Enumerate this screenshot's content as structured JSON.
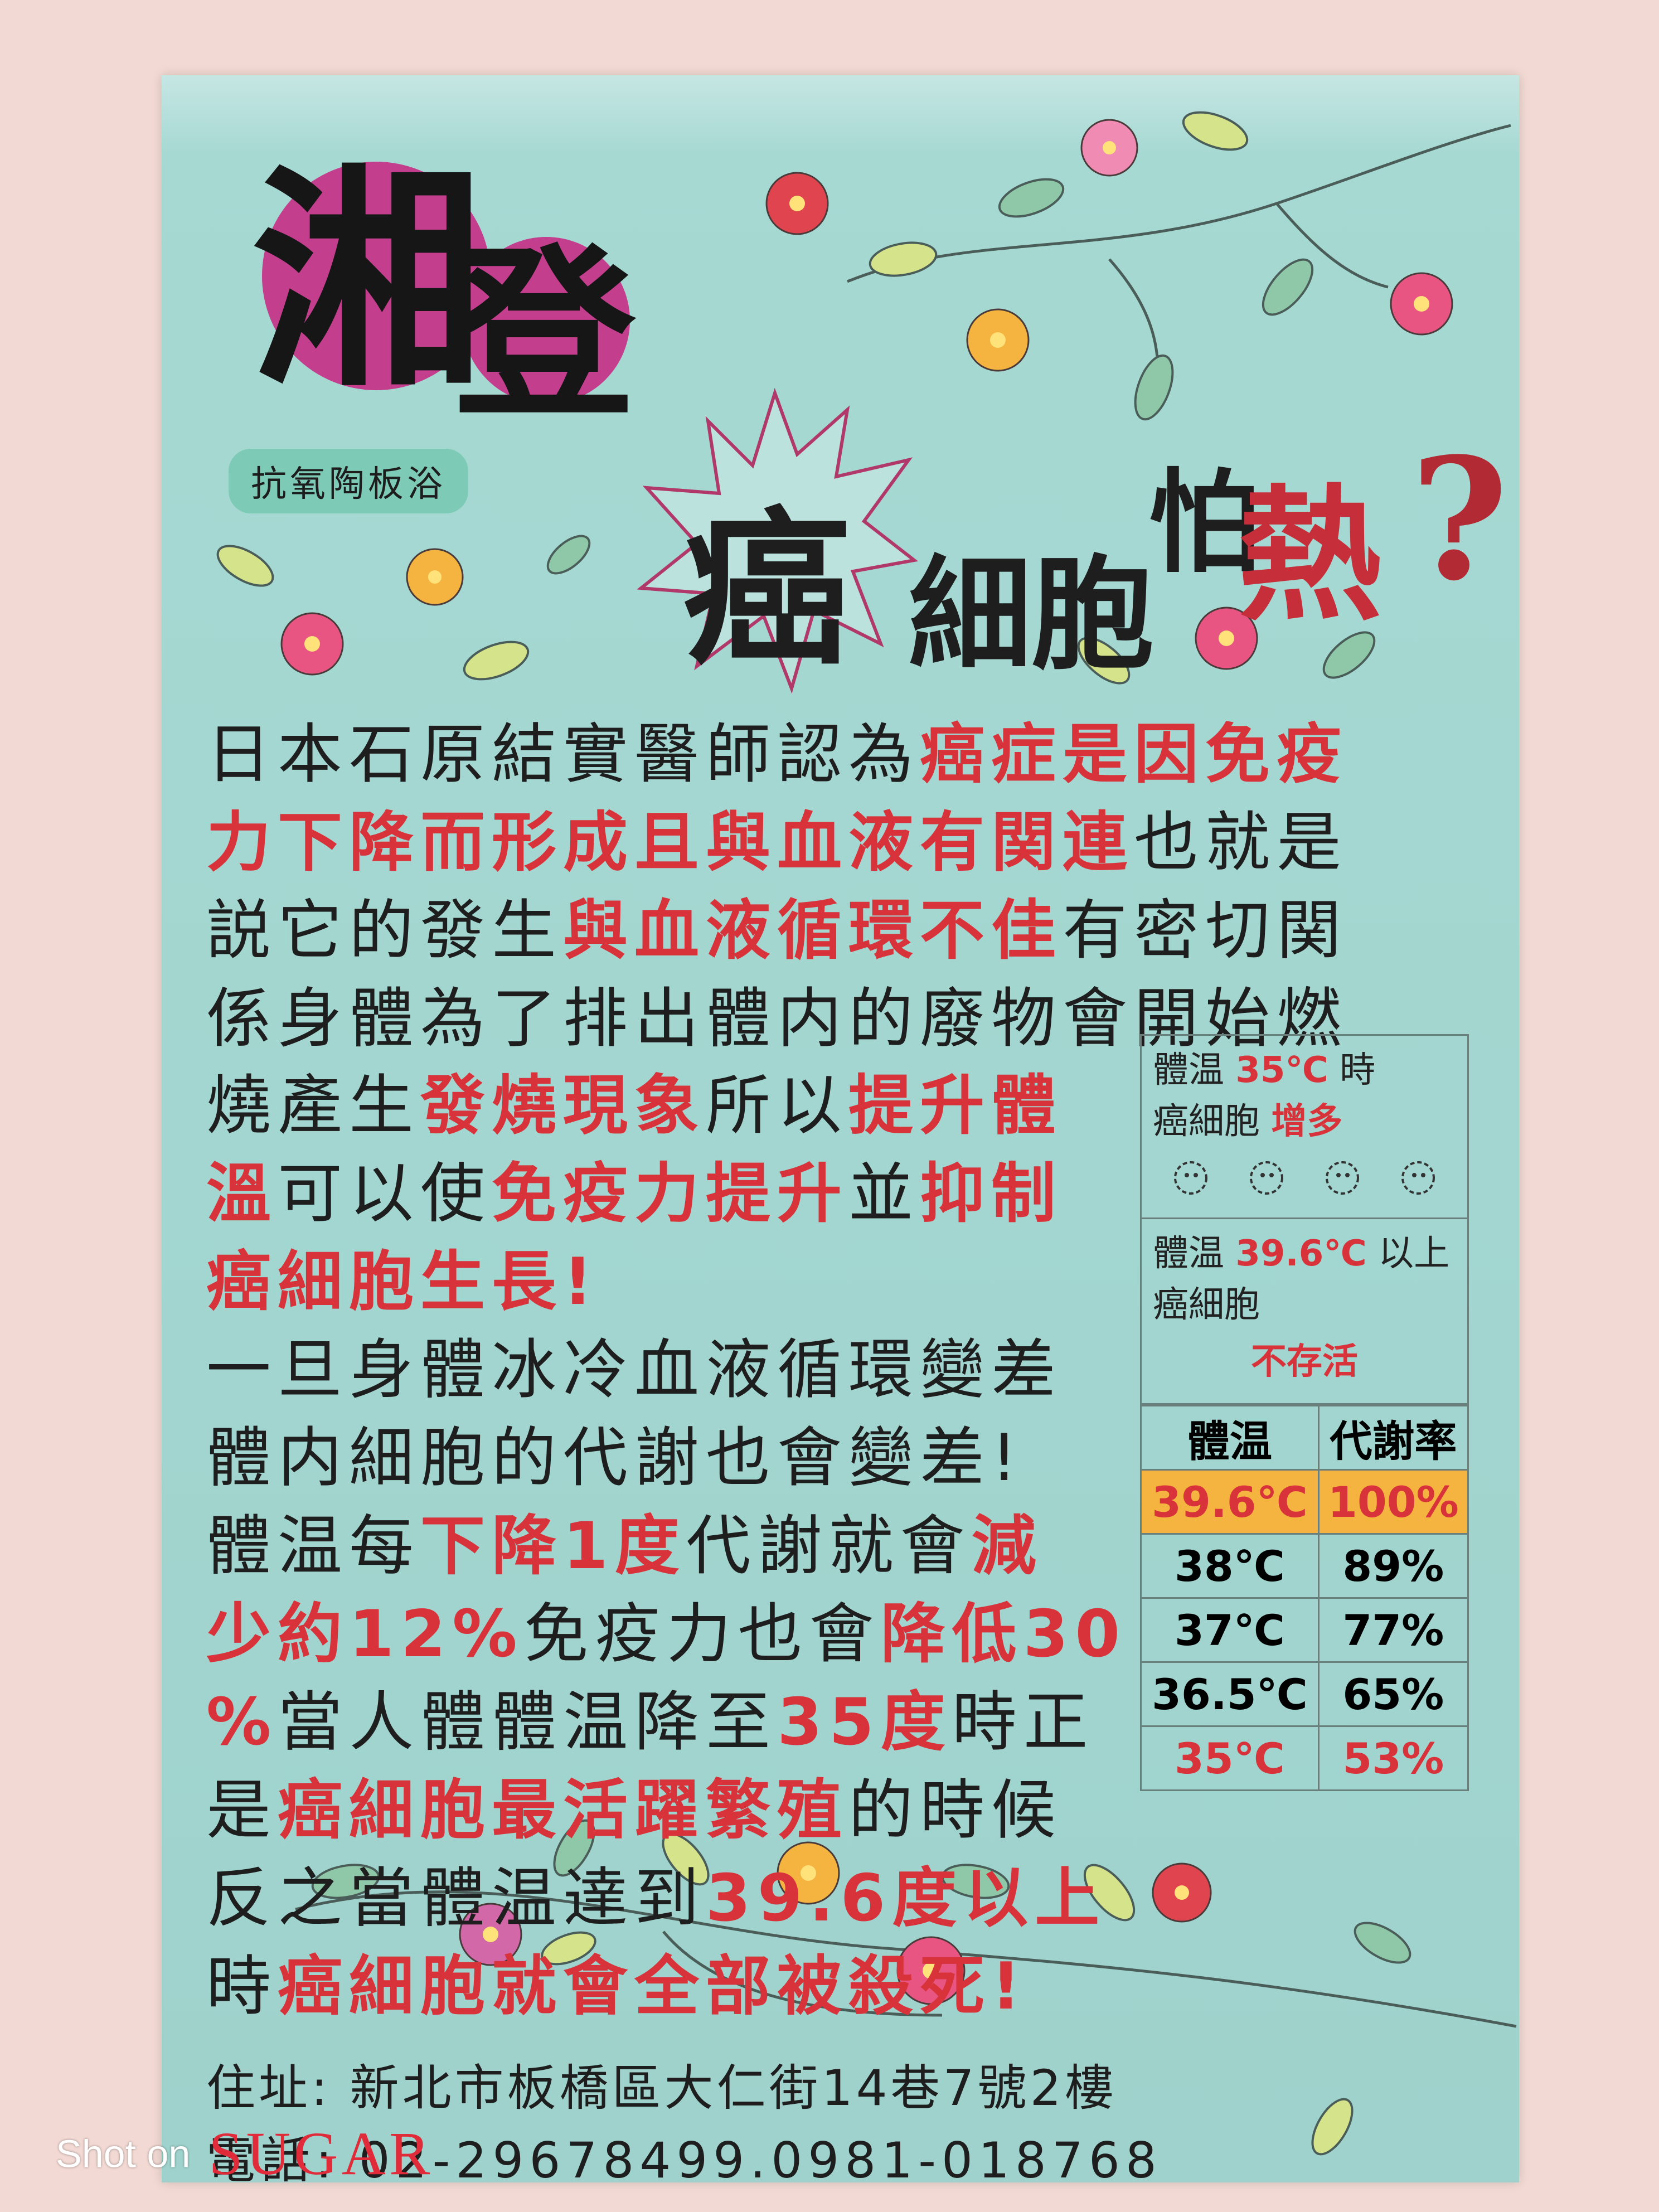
{
  "poster": {
    "title_char_1": "湘",
    "title_char_2": "登",
    "subtitle": "抗氧陶板浴",
    "headline": {
      "cancer": "癌",
      "cell": "細胞",
      "fear": "怕",
      "heat": "熱",
      "question": "?"
    },
    "paragraph_1": [
      [
        {
          "t": "日本石原結實醫師認為",
          "c": "blk"
        },
        {
          "t": "癌症是因免疫",
          "c": "red"
        }
      ],
      [
        {
          "t": "力下降而形成且與血液有関連",
          "c": "red"
        },
        {
          "t": "也就是",
          "c": "blk"
        }
      ],
      [
        {
          "t": "説它的發生",
          "c": "blk"
        },
        {
          "t": "與血液循環不佳",
          "c": "red"
        },
        {
          "t": "有密切関",
          "c": "blk"
        }
      ],
      [
        {
          "t": "係身體為了排出體内的廢物會開始燃",
          "c": "blk"
        }
      ]
    ],
    "paragraph_2": [
      [
        {
          "t": "燒產生",
          "c": "blk"
        },
        {
          "t": "發燒現象",
          "c": "red"
        },
        {
          "t": "所以",
          "c": "blk"
        },
        {
          "t": "提升體",
          "c": "red"
        }
      ],
      [
        {
          "t": "溫",
          "c": "red"
        },
        {
          "t": "可以使",
          "c": "blk"
        },
        {
          "t": "免疫力提升",
          "c": "red"
        },
        {
          "t": "並",
          "c": "blk"
        },
        {
          "t": "抑制",
          "c": "red"
        }
      ],
      [
        {
          "t": "癌細胞生長!",
          "c": "red"
        }
      ],
      [
        {
          "t": "一旦身體冰冷血液循環變差",
          "c": "blk"
        }
      ],
      [
        {
          "t": "體内細胞的代謝也會變差!",
          "c": "blk"
        }
      ],
      [
        {
          "t": "體温每",
          "c": "blk"
        },
        {
          "t": "下降1度",
          "c": "red"
        },
        {
          "t": "代謝就會",
          "c": "blk"
        },
        {
          "t": "減",
          "c": "red"
        }
      ],
      [
        {
          "t": "少約12%",
          "c": "red"
        },
        {
          "t": "免疫力也會",
          "c": "blk"
        },
        {
          "t": "降低30",
          "c": "red"
        }
      ],
      [
        {
          "t": "%",
          "c": "red"
        },
        {
          "t": "當人體體温降至",
          "c": "blk"
        },
        {
          "t": "35度",
          "c": "red"
        },
        {
          "t": "時正",
          "c": "blk"
        }
      ],
      [
        {
          "t": "是",
          "c": "blk"
        },
        {
          "t": "癌細胞最活躍繁殖",
          "c": "red"
        },
        {
          "t": "的時候",
          "c": "blk"
        }
      ],
      [
        {
          "t": "反之當體温達到",
          "c": "blk"
        },
        {
          "t": "39.6度以上",
          "c": "red"
        }
      ],
      [
        {
          "t": "時",
          "c": "blk"
        },
        {
          "t": "癌細胞就會全部被殺死!",
          "c": "red"
        }
      ]
    ],
    "panel": {
      "box1_label": "體温",
      "box1_value": "35℃",
      "box1_suffix": "時",
      "box1_line2_label": "癌細胞",
      "box1_line2_value": "增多",
      "box2_label": "體温",
      "box2_value": "39.6℃",
      "box2_suffix": "以上",
      "box2_line2_label": "癌細胞",
      "box2_line2_value": "不存活",
      "table_headers": [
        "體温",
        "代謝率"
      ],
      "table_rows": [
        [
          "39.6℃",
          "100%"
        ],
        [
          "38℃",
          "89%"
        ],
        [
          "37℃",
          "77%"
        ],
        [
          "36.5℃",
          "65%"
        ],
        [
          "35℃",
          "53%"
        ]
      ]
    },
    "address_label": "住址",
    "address_value": "新北市板橋區大仁街14巷7號2樓",
    "phone_label": "電話",
    "phone_value": "02-29678499.0981-018768"
  },
  "watermark": {
    "shot_on": "Shot on",
    "brand": "SUGAR"
  },
  "colors": {
    "poster_bg": "#a7d9d3",
    "accent_red": "#d8333a",
    "title_circle": "#c43e8e",
    "highlight_row": "#f5b440"
  }
}
